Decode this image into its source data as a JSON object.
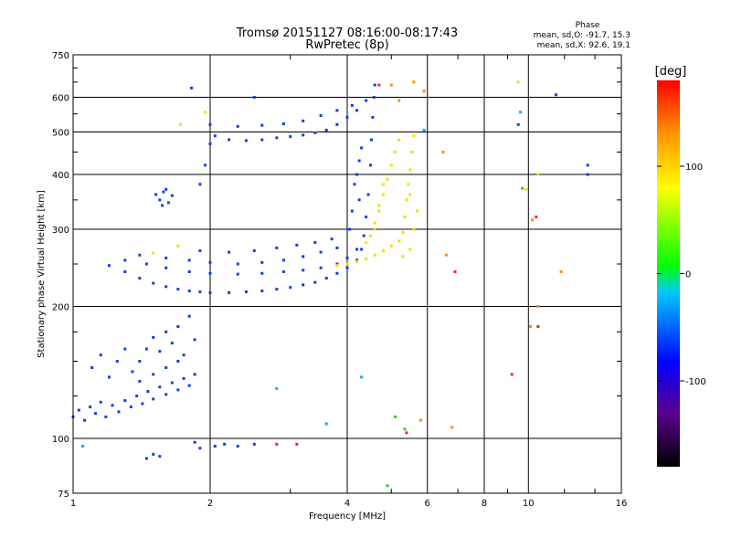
{
  "chart_data": {
    "type": "scatter",
    "title": "Tromsø 20151127 08:16:00-08:17:43",
    "subtitle": "RwPretec (8p)",
    "xlabel": "Frequency [MHz]",
    "ylabel": "Stationary phase Virtual Height [km]",
    "x_scale": "log",
    "y_scale": "log",
    "xlim": [
      1,
      16
    ],
    "ylim": [
      75,
      750
    ],
    "x_ticks": [
      1,
      2,
      4,
      6,
      8,
      10,
      16
    ],
    "x_minor_ticks": [
      3,
      5,
      7,
      9,
      12,
      14
    ],
    "y_ticks": [
      75,
      100,
      200,
      300,
      400,
      500,
      600,
      750
    ],
    "y_minor_ticks": [
      125,
      150,
      175,
      250,
      350,
      450,
      550,
      650,
      700
    ],
    "stats": {
      "title": "Phase",
      "line_o": "mean, sd,O: -91.7, 15.3",
      "line_x": "mean, sd,X:  92.6, 19.1"
    },
    "colorbar": {
      "title": "[deg]",
      "range": [
        -180,
        180
      ],
      "ticks": [
        100,
        0,
        -100
      ],
      "colors": [
        "#000000",
        "#5a0090",
        "#0000ff",
        "#00c8ff",
        "#00ff00",
        "#ffff00",
        "#ff9600",
        "#ff0000"
      ]
    },
    "series": [
      {
        "color": "#1040e0",
        "description_segments": "trace clusters (freq MHz, height km)",
        "points": [
          [
            1.0,
            112
          ],
          [
            1.03,
            116
          ],
          [
            1.06,
            110
          ],
          [
            1.09,
            118
          ],
          [
            1.12,
            114
          ],
          [
            1.15,
            121
          ],
          [
            1.18,
            112
          ],
          [
            1.22,
            119
          ],
          [
            1.26,
            115
          ],
          [
            1.3,
            122
          ],
          [
            1.34,
            118
          ],
          [
            1.38,
            125
          ],
          [
            1.42,
            120
          ],
          [
            1.46,
            128
          ],
          [
            1.5,
            123
          ],
          [
            1.55,
            131
          ],
          [
            1.6,
            126
          ],
          [
            1.65,
            134
          ],
          [
            1.7,
            129
          ],
          [
            1.75,
            137
          ],
          [
            1.8,
            132
          ],
          [
            1.85,
            140
          ],
          [
            1.4,
            150
          ],
          [
            1.45,
            160
          ],
          [
            1.5,
            170
          ],
          [
            1.55,
            158
          ],
          [
            1.6,
            175
          ],
          [
            1.65,
            165
          ],
          [
            1.7,
            180
          ],
          [
            1.75,
            155
          ],
          [
            1.8,
            190
          ],
          [
            1.85,
            168
          ],
          [
            1.6,
            145
          ],
          [
            1.7,
            150
          ],
          [
            1.5,
            140
          ],
          [
            1.4,
            135
          ],
          [
            1.1,
            145
          ],
          [
            1.15,
            155
          ],
          [
            1.2,
            138
          ],
          [
            1.25,
            150
          ],
          [
            1.3,
            160
          ],
          [
            1.35,
            142
          ],
          [
            1.45,
            90
          ],
          [
            1.5,
            92
          ],
          [
            1.55,
            91
          ],
          [
            1.85,
            98
          ],
          [
            1.9,
            95
          ],
          [
            2.05,
            96
          ],
          [
            2.15,
            97
          ],
          [
            2.3,
            96
          ],
          [
            2.5,
            97
          ],
          [
            1.2,
            248
          ],
          [
            1.3,
            240
          ],
          [
            1.4,
            232
          ],
          [
            1.5,
            226
          ],
          [
            1.6,
            222
          ],
          [
            1.7,
            219
          ],
          [
            1.8,
            217
          ],
          [
            1.9,
            216
          ],
          [
            2.0,
            215
          ],
          [
            2.2,
            215
          ],
          [
            2.4,
            216
          ],
          [
            2.6,
            217
          ],
          [
            2.8,
            219
          ],
          [
            3.0,
            221
          ],
          [
            3.2,
            224
          ],
          [
            3.4,
            227
          ],
          [
            3.6,
            232
          ],
          [
            3.8,
            238
          ],
          [
            4.0,
            245
          ],
          [
            4.2,
            255
          ],
          [
            4.3,
            270
          ],
          [
            4.35,
            290
          ],
          [
            4.4,
            320
          ],
          [
            4.45,
            360
          ],
          [
            4.5,
            420
          ],
          [
            4.52,
            480
          ],
          [
            4.55,
            540
          ],
          [
            4.58,
            600
          ],
          [
            4.6,
            640
          ],
          [
            1.3,
            255
          ],
          [
            1.45,
            250
          ],
          [
            1.6,
            245
          ],
          [
            1.8,
            240
          ],
          [
            2.0,
            238
          ],
          [
            2.3,
            237
          ],
          [
            2.6,
            238
          ],
          [
            2.9,
            240
          ],
          [
            3.2,
            242
          ],
          [
            3.5,
            245
          ],
          [
            3.8,
            250
          ],
          [
            4.0,
            258
          ],
          [
            4.2,
            270
          ],
          [
            1.4,
            262
          ],
          [
            1.6,
            258
          ],
          [
            1.8,
            255
          ],
          [
            2.0,
            252
          ],
          [
            2.3,
            250
          ],
          [
            2.6,
            252
          ],
          [
            2.9,
            255
          ],
          [
            3.2,
            260
          ],
          [
            3.5,
            266
          ],
          [
            3.8,
            272
          ],
          [
            1.9,
            268
          ],
          [
            2.2,
            266
          ],
          [
            2.5,
            268
          ],
          [
            2.8,
            272
          ],
          [
            3.1,
            276
          ],
          [
            3.4,
            280
          ],
          [
            3.7,
            285
          ],
          [
            1.52,
            360
          ],
          [
            1.55,
            350
          ],
          [
            1.58,
            365
          ],
          [
            1.62,
            345
          ],
          [
            1.65,
            358
          ],
          [
            1.6,
            370
          ],
          [
            1.57,
            340
          ],
          [
            1.9,
            380
          ],
          [
            1.95,
            420
          ],
          [
            2.0,
            470
          ],
          [
            2.05,
            490
          ],
          [
            2.2,
            480
          ],
          [
            2.4,
            478
          ],
          [
            2.6,
            480
          ],
          [
            2.8,
            485
          ],
          [
            3.0,
            488
          ],
          [
            3.2,
            492
          ],
          [
            3.4,
            498
          ],
          [
            3.6,
            505
          ],
          [
            3.8,
            520
          ],
          [
            4.0,
            540
          ],
          [
            4.2,
            560
          ],
          [
            4.4,
            590
          ],
          [
            2.0,
            520
          ],
          [
            2.3,
            515
          ],
          [
            2.6,
            518
          ],
          [
            2.9,
            522
          ],
          [
            3.2,
            530
          ],
          [
            3.5,
            545
          ],
          [
            3.8,
            560
          ],
          [
            4.1,
            575
          ],
          [
            4.15,
            380
          ],
          [
            4.2,
            400
          ],
          [
            4.25,
            430
          ],
          [
            4.3,
            460
          ],
          [
            4.1,
            330
          ],
          [
            4.05,
            300
          ],
          [
            4.25,
            350
          ],
          [
            1.82,
            630
          ],
          [
            2.5,
            600
          ],
          [
            11.5,
            608
          ],
          [
            13.5,
            420
          ],
          [
            13.5,
            400
          ],
          [
            9.5,
            520
          ]
        ]
      },
      {
        "color": "#f0e000",
        "description_segments": "X-mode trace",
        "points": [
          [
            3.8,
            248
          ],
          [
            4.0,
            250
          ],
          [
            4.2,
            253
          ],
          [
            4.4,
            257
          ],
          [
            4.6,
            262
          ],
          [
            4.8,
            268
          ],
          [
            5.0,
            275
          ],
          [
            5.2,
            282
          ],
          [
            5.3,
            295
          ],
          [
            5.35,
            320
          ],
          [
            5.4,
            350
          ],
          [
            5.45,
            380
          ],
          [
            5.5,
            410
          ],
          [
            5.55,
            450
          ],
          [
            5.6,
            490
          ],
          [
            4.6,
            300
          ],
          [
            4.7,
            330
          ],
          [
            4.8,
            360
          ],
          [
            4.9,
            390
          ],
          [
            5.0,
            420
          ],
          [
            5.1,
            450
          ],
          [
            5.2,
            480
          ],
          [
            4.4,
            280
          ],
          [
            4.5,
            290
          ],
          [
            4.6,
            310
          ],
          [
            4.7,
            340
          ],
          [
            4.8,
            380
          ],
          [
            5.3,
            260
          ],
          [
            5.5,
            270
          ],
          [
            5.6,
            300
          ],
          [
            5.7,
            330
          ],
          [
            5.5,
            360
          ],
          [
            1.5,
            265
          ],
          [
            1.7,
            275
          ],
          [
            1.72,
            520
          ],
          [
            1.95,
            555
          ],
          [
            9.9,
            370
          ],
          [
            10.5,
            400
          ],
          [
            9.5,
            650
          ]
        ]
      },
      {
        "color": "#ff8c00",
        "description_segments": "scattered echoes",
        "points": [
          [
            5.0,
            640
          ],
          [
            5.6,
            650
          ],
          [
            5.9,
            620
          ],
          [
            5.2,
            590
          ],
          [
            6.5,
            450
          ],
          [
            6.6,
            262
          ],
          [
            5.8,
            110
          ],
          [
            6.8,
            106
          ],
          [
            10.2,
            315
          ],
          [
            10.1,
            180
          ],
          [
            11.8,
            240
          ],
          [
            10.5,
            200
          ]
        ]
      },
      {
        "color": "#ff2020",
        "description_segments": "scattered echoes",
        "points": [
          [
            2.8,
            97
          ],
          [
            3.1,
            97
          ],
          [
            5.4,
            103
          ],
          [
            9.2,
            140
          ],
          [
            10.5,
            180
          ],
          [
            6.9,
            240
          ],
          [
            4.7,
            640
          ],
          [
            10.4,
            320
          ]
        ]
      },
      {
        "color": "#00b0f0",
        "description_segments": "scattered echoes",
        "points": [
          [
            2.8,
            130
          ],
          [
            3.6,
            108
          ],
          [
            5.9,
            505
          ],
          [
            9.6,
            555
          ],
          [
            1.05,
            96
          ],
          [
            4.3,
            138
          ]
        ]
      },
      {
        "color": "#30c830",
        "description_segments": "scattered echoes",
        "points": [
          [
            4.9,
            78
          ],
          [
            9.7,
            372
          ],
          [
            5.1,
            112
          ],
          [
            5.35,
            105
          ]
        ]
      }
    ]
  }
}
